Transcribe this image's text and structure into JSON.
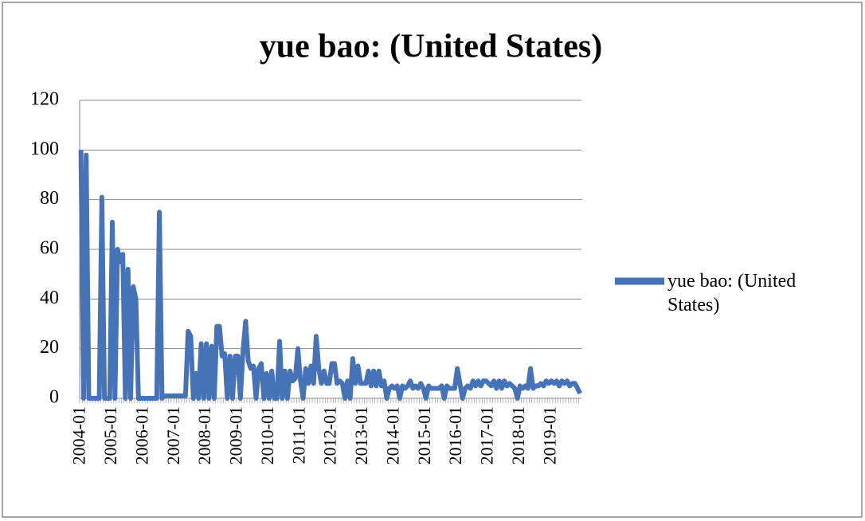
{
  "chart_data": {
    "type": "line",
    "title": "yue bao: (United States)",
    "categories": [
      "2004-01",
      null,
      null,
      null,
      null,
      null,
      null,
      null,
      null,
      null,
      null,
      null,
      "2005-01",
      null,
      null,
      null,
      null,
      null,
      null,
      null,
      null,
      null,
      null,
      null,
      "2006-01",
      null,
      null,
      null,
      null,
      null,
      null,
      null,
      null,
      null,
      null,
      null,
      "2007-01",
      null,
      null,
      null,
      null,
      null,
      null,
      null,
      null,
      null,
      null,
      null,
      "2008-01",
      null,
      null,
      null,
      null,
      null,
      null,
      null,
      null,
      null,
      null,
      null,
      "2009-01",
      null,
      null,
      null,
      null,
      null,
      null,
      null,
      null,
      null,
      null,
      null,
      "2010-01",
      null,
      null,
      null,
      null,
      null,
      null,
      null,
      null,
      null,
      null,
      null,
      "2011-01",
      null,
      null,
      null,
      null,
      null,
      null,
      null,
      null,
      null,
      null,
      null,
      "2012-01",
      null,
      null,
      null,
      null,
      null,
      null,
      null,
      null,
      null,
      null,
      null,
      "2013-01",
      null,
      null,
      null,
      null,
      null,
      null,
      null,
      null,
      null,
      null,
      null,
      "2014-01",
      null,
      null,
      null,
      null,
      null,
      null,
      null,
      null,
      null,
      null,
      null,
      "2015-01",
      null,
      null,
      null,
      null,
      null,
      null,
      null,
      null,
      null,
      null,
      null,
      "2016-01",
      null,
      null,
      null,
      null,
      null,
      null,
      null,
      null,
      null,
      null,
      null,
      "2017-01",
      null,
      null,
      null,
      null,
      null,
      null,
      null,
      null,
      null,
      null,
      null,
      "2018-01",
      null,
      null,
      null,
      null,
      null,
      null,
      null,
      null,
      null,
      null,
      null,
      "2019-01",
      null,
      null,
      null,
      null,
      null,
      null,
      null,
      null,
      null,
      null,
      null
    ],
    "series": [
      {
        "name": "yue bao: (United States)",
        "color": "#4672b8",
        "values": [
          100,
          0,
          98,
          0,
          0,
          0,
          0,
          0,
          81,
          0,
          0,
          0,
          71,
          0,
          60,
          55,
          58,
          0,
          52,
          0,
          45,
          40,
          0,
          0,
          0,
          0,
          0,
          0,
          0,
          0,
          75,
          0,
          1,
          1,
          1,
          1,
          1,
          1,
          1,
          1,
          1,
          27,
          25,
          0,
          10,
          0,
          22,
          0,
          22,
          0,
          21,
          0,
          29,
          29,
          17,
          18,
          0,
          17,
          0,
          17,
          17,
          0,
          19,
          31,
          15,
          12,
          13,
          0,
          12,
          14,
          0,
          10,
          0,
          11,
          0,
          0,
          23,
          0,
          11,
          0,
          11,
          7,
          8,
          20,
          7,
          0,
          12,
          6,
          13,
          6,
          25,
          12,
          6,
          11,
          6,
          6,
          14,
          14,
          6,
          7,
          6,
          0,
          7,
          0,
          16,
          6,
          13,
          6,
          6,
          6,
          11,
          5,
          11,
          5,
          11,
          5,
          7,
          0,
          4,
          5,
          4,
          5,
          0,
          5,
          4,
          5,
          7,
          4,
          5,
          4,
          6,
          4,
          0,
          5,
          4,
          4,
          4,
          4,
          5,
          0,
          5,
          4,
          4,
          4,
          12,
          6,
          0,
          4,
          5,
          4,
          7,
          5,
          7,
          5,
          7,
          7,
          6,
          5,
          7,
          4,
          7,
          4,
          7,
          5,
          6,
          5,
          4,
          0,
          5,
          4,
          5,
          4,
          12,
          4,
          5,
          5,
          6,
          5,
          7,
          6,
          7,
          6,
          7,
          5,
          7,
          6,
          7,
          5,
          6,
          6,
          4,
          2
        ]
      }
    ],
    "ylim": [
      0,
      120
    ],
    "yticks": [
      0,
      20,
      40,
      60,
      80,
      100,
      120
    ],
    "grid": true,
    "legend": "right"
  }
}
